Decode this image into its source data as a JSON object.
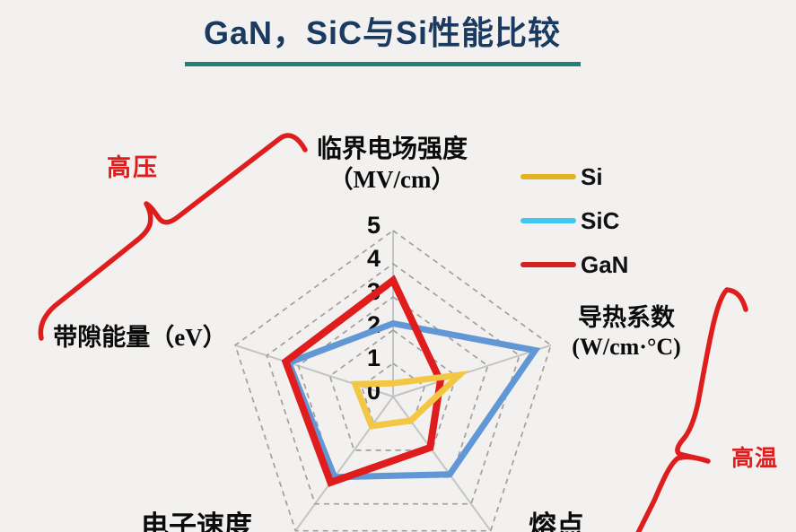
{
  "title": "GaN，SiC与Si性能比较",
  "legend": {
    "items": [
      {
        "label": "Si",
        "color": "#E3B41F"
      },
      {
        "label": "SiC",
        "color": "#43C7F0"
      },
      {
        "label": "GaN",
        "color": "#D42221"
      }
    ]
  },
  "annotations": {
    "high_voltage": "高压",
    "high_temperature": "高温"
  },
  "chart_data": {
    "type": "radar",
    "title": "GaN，SiC与Si性能比较",
    "categories": [
      "临界电场强度（MV/cm）",
      "导热系数 (W/cm·°C)",
      "熔点",
      "电子速度",
      "带隙能量（eV）"
    ],
    "axes_display": [
      {
        "lines": [
          "临界电场强度",
          "（MV/cm）"
        ]
      },
      {
        "lines": [
          "导热系数",
          "(W/cm·°C)"
        ]
      },
      {
        "lines": [
          "熔点",
          ""
        ]
      },
      {
        "lines": [
          "电子速度",
          ""
        ]
      },
      {
        "lines": [
          "带隙能量（eV）",
          ""
        ]
      }
    ],
    "scale": {
      "min": 0,
      "max": 5,
      "step": 1,
      "ticks": [
        "0",
        "1",
        "2",
        "3",
        "4",
        "5"
      ]
    },
    "series": [
      {
        "name": "Si",
        "color": "#F3C644",
        "values": [
          0.4,
          2.1,
          0.9,
          1.1,
          1.2
        ]
      },
      {
        "name": "SiC",
        "color": "#6297D6",
        "values": [
          2.2,
          4.5,
          2.9,
          3.0,
          3.3
        ]
      },
      {
        "name": "GaN",
        "color": "#E01D1D",
        "values": [
          3.5,
          1.5,
          1.9,
          3.2,
          3.4
        ]
      }
    ],
    "grid": {
      "shape": "pentagon",
      "style": "dashed",
      "levels": 5
    },
    "legend_position": "right"
  },
  "colors": {
    "background": "#F2F1EF",
    "title": "#1B3A60",
    "underline": "#1F8276",
    "annotation": "#E01D1D",
    "grid_ring": "#A0A0A0",
    "grid_spoke": "#C4C4C4",
    "tick_text": "#0B0B0B"
  }
}
